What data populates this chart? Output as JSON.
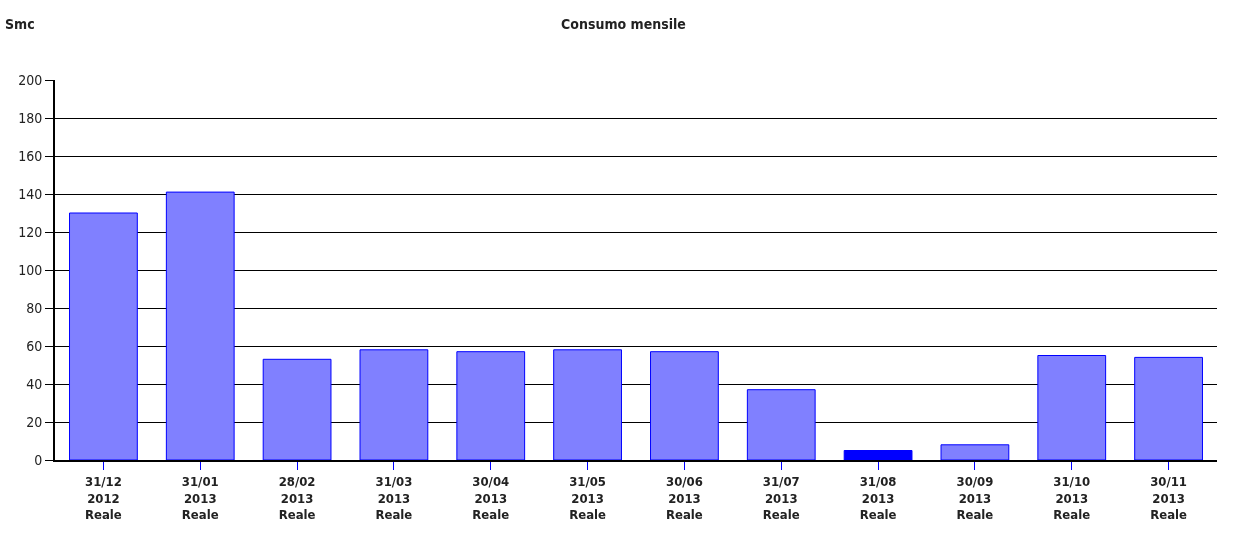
{
  "chart_data": {
    "type": "bar",
    "title": "Consumo mensile",
    "ylabel": "Smc",
    "categories": [
      "31/12\n2012\nReale",
      "31/01\n2013\nReale",
      "28/02\n2013\nReale",
      "31/03\n2013\nReale",
      "30/04\n2013\nReale",
      "31/05\n2013\nReale",
      "30/06\n2013\nReale",
      "31/07\n2013\nReale",
      "31/08\n2013\nReale",
      "30/09\n2013\nReale",
      "31/10\n2013\nReale",
      "30/11\n2013\nReale"
    ],
    "values": [
      130,
      141,
      53,
      58,
      57,
      58,
      57,
      37,
      5,
      8,
      55,
      54
    ],
    "colors": [
      "#8080ff",
      "#8080ff",
      "#8080ff",
      "#8080ff",
      "#8080ff",
      "#8080ff",
      "#8080ff",
      "#8080ff",
      "#0000ff",
      "#8080ff",
      "#8080ff",
      "#8080ff"
    ],
    "ylim": [
      0,
      200
    ],
    "yticks": [
      0,
      20,
      40,
      60,
      80,
      100,
      120,
      140,
      160,
      180,
      200
    ],
    "grid": "y"
  }
}
